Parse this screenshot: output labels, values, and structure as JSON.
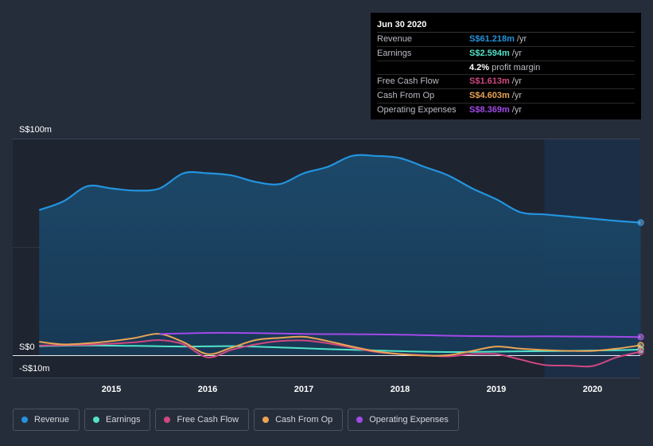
{
  "tooltip": {
    "date": "Jun 30 2020",
    "rows": [
      {
        "label": "Revenue",
        "value": "S$61.218m",
        "suffix": "/yr",
        "color": "#2394df"
      },
      {
        "label": "Earnings",
        "value": "S$2.594m",
        "suffix": "/yr",
        "color": "#52e3c8"
      },
      {
        "label": "",
        "value": "4.2%",
        "suffix": "profit margin",
        "color": "#ffffff"
      },
      {
        "label": "Free Cash Flow",
        "value": "S$1.613m",
        "suffix": "/yr",
        "color": "#d14781"
      },
      {
        "label": "Cash From Op",
        "value": "S$4.603m",
        "suffix": "/yr",
        "color": "#eaa455"
      },
      {
        "label": "Operating Expenses",
        "value": "S$8.369m",
        "suffix": "/yr",
        "color": "#a249e8"
      }
    ]
  },
  "chart_data": {
    "type": "area",
    "title": "",
    "xlabel": "",
    "ylabel": "",
    "ylim": [
      -10,
      100
    ],
    "y_axis_labels": [
      "S$100m",
      "S$0",
      "-S$10m"
    ],
    "x_ticks": [
      "2015",
      "2016",
      "2017",
      "2018",
      "2019",
      "2020"
    ],
    "forecast_shade_start": 2019.5,
    "series": [
      {
        "name": "Revenue",
        "color": "#2394df",
        "filled": true,
        "x": [
          2014.25,
          2014.5,
          2014.75,
          2015.0,
          2015.25,
          2015.5,
          2015.75,
          2016.0,
          2016.25,
          2016.5,
          2016.75,
          2017.0,
          2017.25,
          2017.5,
          2017.75,
          2018.0,
          2018.25,
          2018.5,
          2018.75,
          2019.0,
          2019.25,
          2019.5,
          2019.75,
          2020.0,
          2020.25,
          2020.5
        ],
        "values": [
          67,
          71,
          78,
          77,
          76,
          77,
          84,
          84,
          83,
          80,
          79,
          84,
          87,
          92,
          92,
          91,
          87,
          83,
          77,
          72,
          66,
          65,
          64,
          63,
          62,
          61.2
        ]
      },
      {
        "name": "Earnings",
        "color": "#52e3c8",
        "x": [
          2014.25,
          2014.75,
          2015.25,
          2015.75,
          2016.25,
          2016.75,
          2017.25,
          2017.75,
          2018.25,
          2018.75,
          2019.25,
          2019.75,
          2020.25,
          2020.5
        ],
        "values": [
          4.2,
          4.5,
          4.3,
          4.0,
          4.2,
          3.6,
          2.8,
          2.2,
          1.6,
          1.5,
          1.8,
          2.0,
          2.3,
          2.6
        ]
      },
      {
        "name": "Free Cash Flow",
        "color": "#d14781",
        "x": [
          2014.25,
          2014.75,
          2015.25,
          2015.5,
          2015.75,
          2016.0,
          2016.25,
          2016.5,
          2016.75,
          2017.0,
          2017.25,
          2017.5,
          2017.75,
          2018.0,
          2018.25,
          2018.5,
          2018.75,
          2019.0,
          2019.25,
          2019.5,
          2019.75,
          2020.0,
          2020.25,
          2020.5
        ],
        "values": [
          4.5,
          4.8,
          6.0,
          7.0,
          5.0,
          -1.0,
          2.5,
          5.0,
          6.5,
          6.8,
          5.5,
          3.5,
          1.5,
          0.5,
          0.0,
          -0.5,
          0.5,
          0.5,
          -2.0,
          -4.5,
          -4.8,
          -5.0,
          -1.0,
          1.6
        ]
      },
      {
        "name": "Cash From Op",
        "color": "#eaa455",
        "x": [
          2014.25,
          2014.5,
          2014.75,
          2015.0,
          2015.25,
          2015.5,
          2015.75,
          2016.0,
          2016.25,
          2016.5,
          2016.75,
          2017.0,
          2017.25,
          2017.5,
          2017.75,
          2018.0,
          2018.25,
          2018.5,
          2018.75,
          2019.0,
          2019.25,
          2019.5,
          2019.75,
          2020.0,
          2020.25,
          2020.5
        ],
        "values": [
          6.2,
          5.0,
          5.5,
          6.5,
          8.0,
          9.8,
          6.0,
          0.5,
          3.5,
          7.0,
          8.0,
          8.5,
          6.5,
          4.0,
          1.8,
          0.5,
          -0.2,
          0.0,
          2.0,
          4.0,
          3.0,
          2.4,
          2.0,
          2.0,
          3.0,
          4.6
        ]
      },
      {
        "name": "Operating Expenses",
        "color": "#a249e8",
        "x": [
          2015.5,
          2016.0,
          2016.5,
          2017.0,
          2017.5,
          2018.0,
          2018.5,
          2019.0,
          2019.5,
          2020.0,
          2020.25,
          2020.5
        ],
        "values": [
          9.8,
          10.3,
          10.2,
          9.8,
          9.7,
          9.5,
          9.0,
          8.7,
          8.7,
          8.6,
          8.5,
          8.4
        ]
      }
    ]
  },
  "legend": [
    {
      "label": "Revenue",
      "color": "#2394df"
    },
    {
      "label": "Earnings",
      "color": "#52e3c8"
    },
    {
      "label": "Free Cash Flow",
      "color": "#d14781"
    },
    {
      "label": "Cash From Op",
      "color": "#eaa455"
    },
    {
      "label": "Operating Expenses",
      "color": "#a249e8"
    }
  ]
}
